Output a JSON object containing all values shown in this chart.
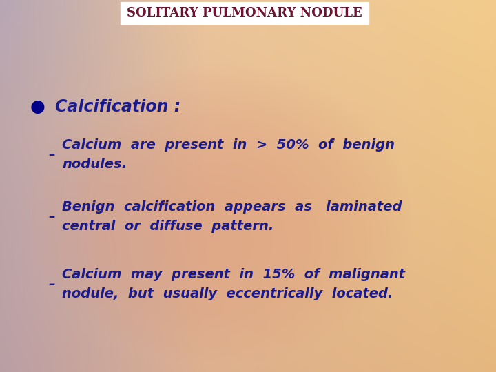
{
  "title": "SOLITARY PULMONARY NODULE",
  "title_color": "#6B1530",
  "title_bg": "#FFFFFF",
  "title_fontsize": 13,
  "bullet_color": "#00008B",
  "text_color": "#1a1a8c",
  "bullet_header": "Calcification :",
  "bullet_header_fontsize": 17,
  "sub_items": [
    "Calcium  are  present  in  >  50%  of  benign\nnodules.",
    "Benign  calcification  appears  as   laminated\ncentral  or  diffuse  pattern.",
    "Calcium  may  present  in  15%  of  malignant\nnodule,  but  usually  eccentrically  located."
  ],
  "sub_fontsize": 14,
  "bg_base": "#d4a080",
  "bg_left_color": "#b0aac8",
  "bg_right_color": "#e8c8a0",
  "bg_center_color": "#d88060"
}
